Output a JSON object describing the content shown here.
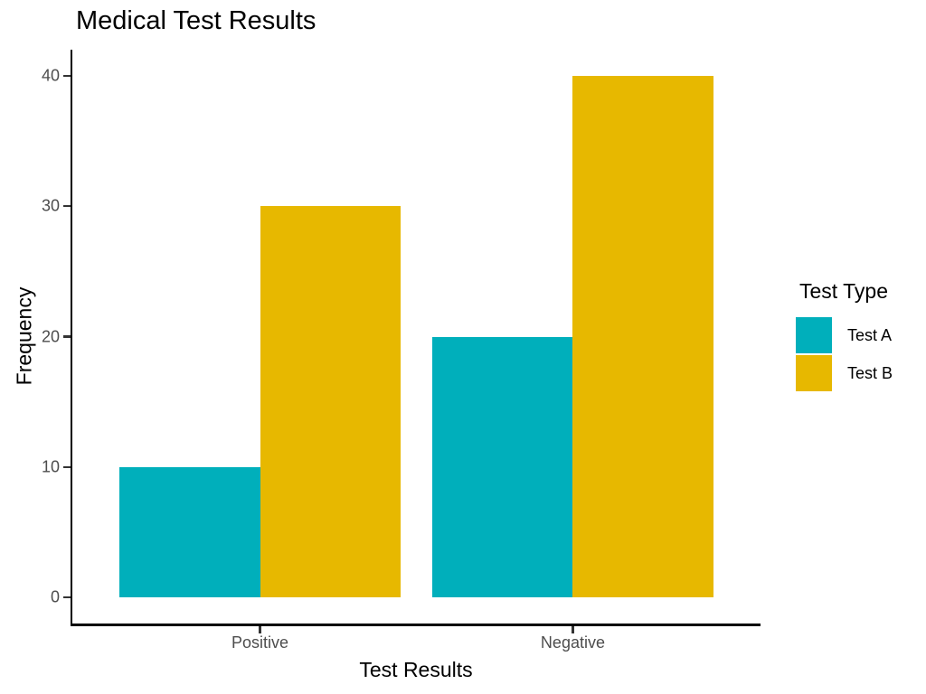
{
  "chart_data": {
    "type": "bar",
    "bar_mode": "grouped",
    "title": "Medical Test Results",
    "xlabel": "Test Results",
    "ylabel": "Frequency",
    "categories": [
      "Positive",
      "Negative"
    ],
    "series": [
      {
        "name": "Test A",
        "color": "#00AFBB",
        "values": [
          10,
          20
        ]
      },
      {
        "name": "Test B",
        "color": "#E7B800",
        "values": [
          30,
          40
        ]
      }
    ],
    "legend_title": "Test Type",
    "legend_position": "right",
    "ylim": [
      0,
      40
    ],
    "yticks": [
      "0",
      "10",
      "20",
      "30",
      "40"
    ],
    "grid": false,
    "colors": {
      "axis_line": "#000000",
      "tick_mark": "#333333",
      "tick_label": "#4D4D4D",
      "text": "#000000",
      "background": "#FFFFFF"
    }
  }
}
